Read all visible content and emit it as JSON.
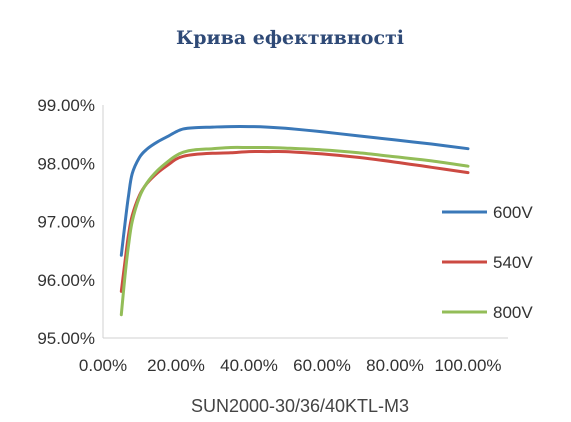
{
  "chart_data": {
    "type": "line",
    "title": "Крива ефективності",
    "xlabel": "SUN2000-30/36/40KTL-M3",
    "ylabel": "",
    "xlim": [
      0,
      100
    ],
    "ylim": [
      95,
      99
    ],
    "x_ticks": [
      "0.00%",
      "20.00%",
      "40.00%",
      "60.00%",
      "80.00%",
      "100.00%"
    ],
    "y_ticks": [
      "99.00%",
      "98.00%",
      "97.00%",
      "96.00%",
      "95.00%"
    ],
    "grid": false,
    "legend_position": "right",
    "series": [
      {
        "name": "600V",
        "color": "#3a78b8",
        "x": [
          5,
          6,
          7,
          8,
          10,
          12,
          15,
          18,
          20,
          22,
          25,
          30,
          35,
          40,
          45,
          50,
          60,
          70,
          80,
          90,
          100
        ],
        "y": [
          96.42,
          96.95,
          97.45,
          97.82,
          98.1,
          98.24,
          98.37,
          98.47,
          98.54,
          98.59,
          98.61,
          98.62,
          98.63,
          98.63,
          98.62,
          98.6,
          98.54,
          98.47,
          98.4,
          98.33,
          98.25
        ]
      },
      {
        "name": "540V",
        "color": "#cc4a42",
        "x": [
          5,
          6,
          7,
          8,
          10,
          12,
          15,
          18,
          20,
          22,
          25,
          30,
          35,
          40,
          45,
          50,
          60,
          70,
          80,
          90,
          100
        ],
        "y": [
          95.8,
          96.3,
          96.78,
          97.1,
          97.45,
          97.65,
          97.84,
          97.98,
          98.07,
          98.12,
          98.15,
          98.17,
          98.18,
          98.2,
          98.2,
          98.2,
          98.16,
          98.1,
          98.02,
          97.93,
          97.84
        ]
      },
      {
        "name": "800V",
        "color": "#93bd58",
        "x": [
          5,
          6,
          7,
          8,
          10,
          12,
          15,
          18,
          20,
          22,
          25,
          30,
          35,
          40,
          45,
          50,
          60,
          70,
          80,
          90,
          100
        ],
        "y": [
          95.4,
          96.05,
          96.6,
          97.0,
          97.42,
          97.66,
          97.88,
          98.04,
          98.13,
          98.19,
          98.23,
          98.25,
          98.27,
          98.27,
          98.27,
          98.26,
          98.23,
          98.18,
          98.11,
          98.04,
          97.95
        ]
      }
    ]
  }
}
